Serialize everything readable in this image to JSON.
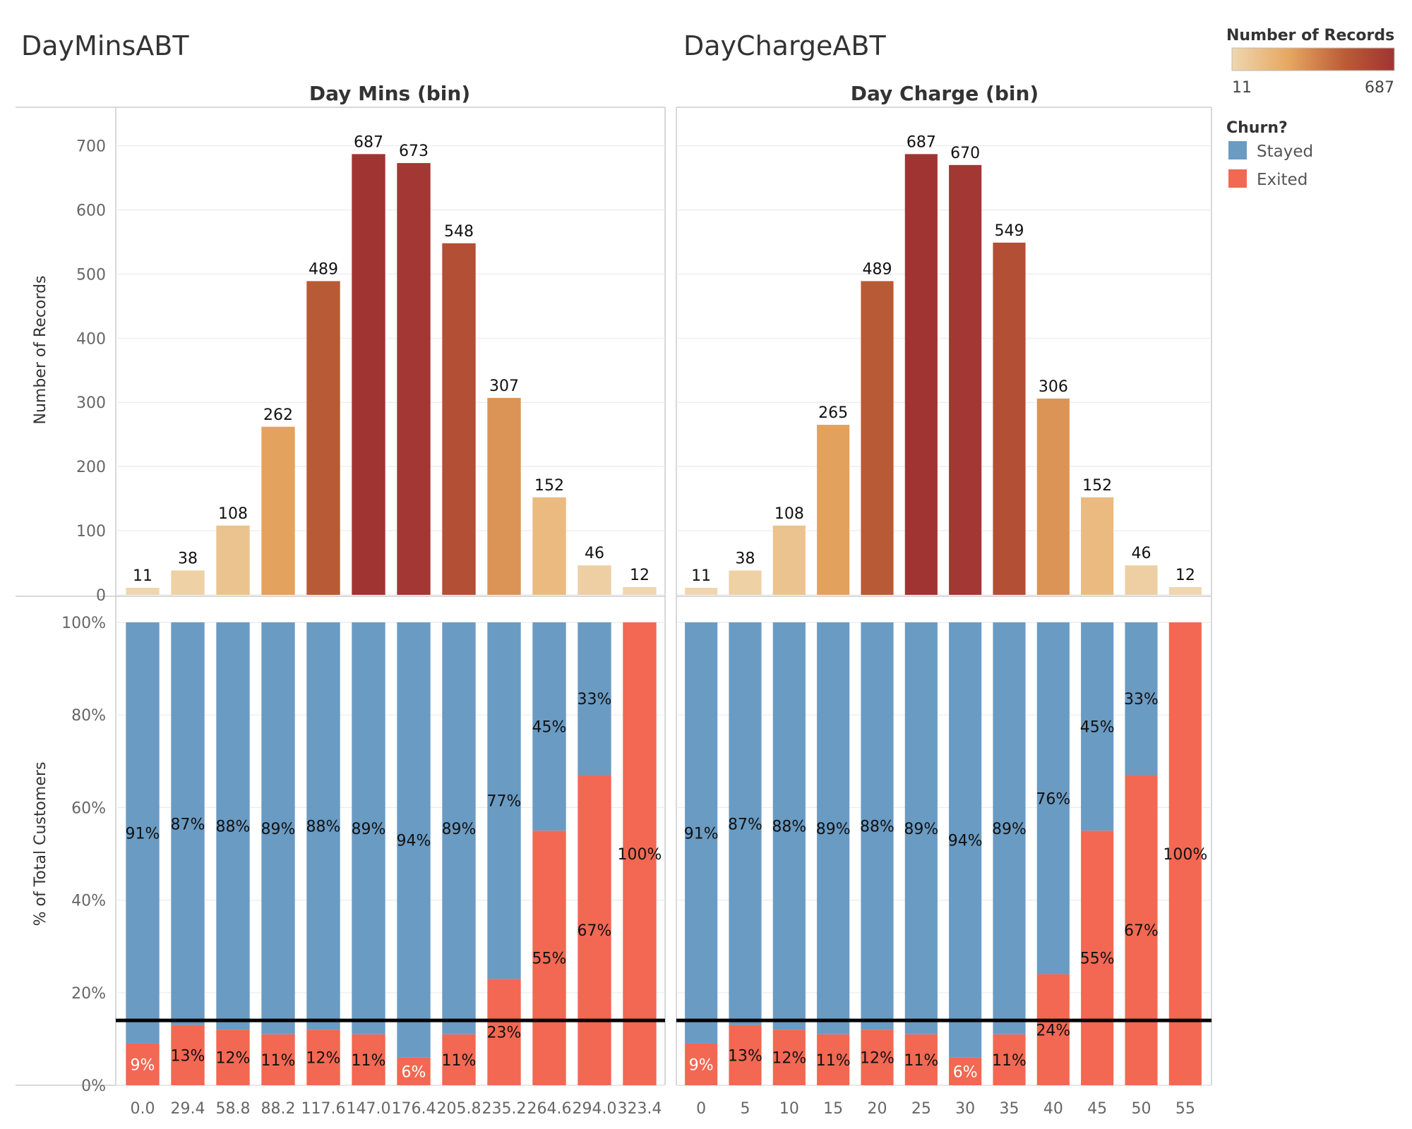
{
  "colors": {
    "stayed": "#6a9bc3",
    "exited": "#f26853",
    "grid": "#ebebeb",
    "border": "#cccccc",
    "reference_line": "#000000",
    "count_ramp": [
      "#efd6ae",
      "#e6a761",
      "#ba5b36",
      "#a03433"
    ]
  },
  "legend": {
    "count_title": "Number of Records",
    "count_min": "11",
    "count_max": "687",
    "churn_title": "Churn?",
    "items": [
      {
        "label": "Stayed",
        "color": "#6a9bc3"
      },
      {
        "label": "Exited",
        "color": "#f26853"
      }
    ]
  },
  "axes": {
    "count_ylabel": "Number of Records",
    "pct_ylabel": "% of Total Customers",
    "count_ticks": [
      "0",
      "100",
      "200",
      "300",
      "400",
      "500",
      "600",
      "700"
    ],
    "pct_ticks": [
      "0%",
      "20%",
      "40%",
      "60%",
      "80%",
      "100%"
    ]
  },
  "chart_data": [
    {
      "type": "bar",
      "title": "DayMinsABT",
      "column_header": "Day Mins (bin)",
      "categories": [
        "0.0",
        "29.4",
        "58.8",
        "88.2",
        "117.6",
        "147.0",
        "176.4",
        "205.8",
        "235.2",
        "264.6",
        "294.0",
        "323.4"
      ],
      "count_axis": {
        "label": "Number of Records",
        "ylim": [
          0,
          760
        ]
      },
      "counts": [
        11,
        38,
        108,
        262,
        489,
        687,
        673,
        548,
        307,
        152,
        46,
        12
      ],
      "count_labels": [
        "11",
        "38",
        "108",
        "262",
        "489",
        "687",
        "673",
        "548",
        "307",
        "152",
        "46",
        "12"
      ],
      "pct_axis": {
        "label": "% of Total Customers",
        "ylim": [
          0,
          100
        ]
      },
      "series": [
        {
          "name": "Stayed",
          "values": [
            91,
            87,
            88,
            89,
            88,
            89,
            94,
            89,
            77,
            45,
            33,
            0
          ],
          "labels": [
            "91%",
            "87%",
            "88%",
            "89%",
            "88%",
            "89%",
            "94%",
            "89%",
            "77%",
            "45%",
            "33%",
            ""
          ]
        },
        {
          "name": "Exited",
          "values": [
            9,
            13,
            12,
            11,
            12,
            11,
            6,
            11,
            23,
            55,
            67,
            100
          ],
          "labels": [
            "9%",
            "13%",
            "12%",
            "11%",
            "12%",
            "11%",
            "6%",
            "11%",
            "23%",
            "55%",
            "67%",
            "100%"
          ]
        }
      ],
      "reference_line": 14,
      "grid": true
    },
    {
      "type": "bar",
      "title": "DayChargeABT",
      "column_header": "Day Charge (bin)",
      "categories": [
        "0",
        "5",
        "10",
        "15",
        "20",
        "25",
        "30",
        "35",
        "40",
        "45",
        "50",
        "55"
      ],
      "count_axis": {
        "label": "Number of Records",
        "ylim": [
          0,
          760
        ]
      },
      "counts": [
        11,
        38,
        108,
        265,
        489,
        687,
        670,
        549,
        306,
        152,
        46,
        12
      ],
      "count_labels": [
        "11",
        "38",
        "108",
        "265",
        "489",
        "687",
        "670",
        "549",
        "306",
        "152",
        "46",
        "12"
      ],
      "pct_axis": {
        "label": "% of Total Customers",
        "ylim": [
          0,
          100
        ]
      },
      "series": [
        {
          "name": "Stayed",
          "values": [
            91,
            87,
            88,
            89,
            88,
            89,
            94,
            89,
            76,
            45,
            33,
            0
          ],
          "labels": [
            "91%",
            "87%",
            "88%",
            "89%",
            "88%",
            "89%",
            "94%",
            "89%",
            "76%",
            "45%",
            "33%",
            ""
          ]
        },
        {
          "name": "Exited",
          "values": [
            9,
            13,
            12,
            11,
            12,
            11,
            6,
            11,
            24,
            55,
            67,
            100
          ],
          "labels": [
            "9%",
            "13%",
            "12%",
            "11%",
            "12%",
            "11%",
            "6%",
            "11%",
            "24%",
            "55%",
            "67%",
            "100%"
          ]
        }
      ],
      "reference_line": 14,
      "grid": true
    }
  ]
}
